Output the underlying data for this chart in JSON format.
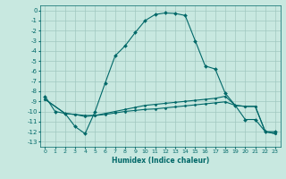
{
  "title": "",
  "xlabel": "Humidex (Indice chaleur)",
  "ylabel": "",
  "bg_color": "#c8e8e0",
  "grid_color": "#a0c8c0",
  "line_color": "#006868",
  "xlim": [
    -0.5,
    23.5
  ],
  "ylim": [
    -13.5,
    0.5
  ],
  "yticks": [
    0,
    -1,
    -2,
    -3,
    -4,
    -5,
    -6,
    -7,
    -8,
    -9,
    -10,
    -11,
    -12,
    -13
  ],
  "xticks": [
    0,
    1,
    2,
    3,
    4,
    5,
    6,
    7,
    8,
    9,
    10,
    11,
    12,
    13,
    14,
    15,
    16,
    17,
    18,
    19,
    20,
    21,
    22,
    23
  ],
  "curve1_x": [
    0,
    1,
    2,
    3,
    4,
    5,
    6,
    7,
    8,
    9,
    10,
    11,
    12,
    13,
    14,
    15,
    16,
    17,
    18,
    19,
    20,
    21,
    22,
    23
  ],
  "curve1_y": [
    -8.5,
    -10.0,
    -10.2,
    -11.5,
    -12.2,
    -10.0,
    -7.2,
    -4.5,
    -3.5,
    -2.2,
    -1.0,
    -0.4,
    -0.25,
    -0.3,
    -0.5,
    -3.0,
    -5.5,
    -5.8,
    -8.2,
    -9.4,
    -10.8,
    -10.8,
    -12.0,
    -12.0
  ],
  "curve2_x": [
    0,
    2,
    3,
    4,
    5,
    6,
    7,
    8,
    9,
    10,
    11,
    12,
    13,
    14,
    15,
    16,
    17,
    18,
    19,
    20,
    21,
    22,
    23
  ],
  "curve2_y": [
    -8.8,
    -10.2,
    -10.3,
    -10.4,
    -10.4,
    -10.2,
    -10.0,
    -9.8,
    -9.6,
    -9.4,
    -9.3,
    -9.2,
    -9.1,
    -9.0,
    -8.9,
    -8.8,
    -8.7,
    -8.5,
    -9.4,
    -9.5,
    -9.5,
    -12.0,
    -12.2
  ],
  "curve3_x": [
    0,
    2,
    3,
    4,
    5,
    6,
    7,
    8,
    9,
    10,
    11,
    12,
    13,
    14,
    15,
    16,
    17,
    18,
    19,
    20,
    21,
    22,
    23
  ],
  "curve3_y": [
    -8.8,
    -10.2,
    -10.3,
    -10.5,
    -10.4,
    -10.3,
    -10.15,
    -10.0,
    -9.9,
    -9.8,
    -9.75,
    -9.65,
    -9.55,
    -9.45,
    -9.35,
    -9.25,
    -9.15,
    -9.05,
    -9.4,
    -9.5,
    -9.5,
    -12.0,
    -12.2
  ]
}
